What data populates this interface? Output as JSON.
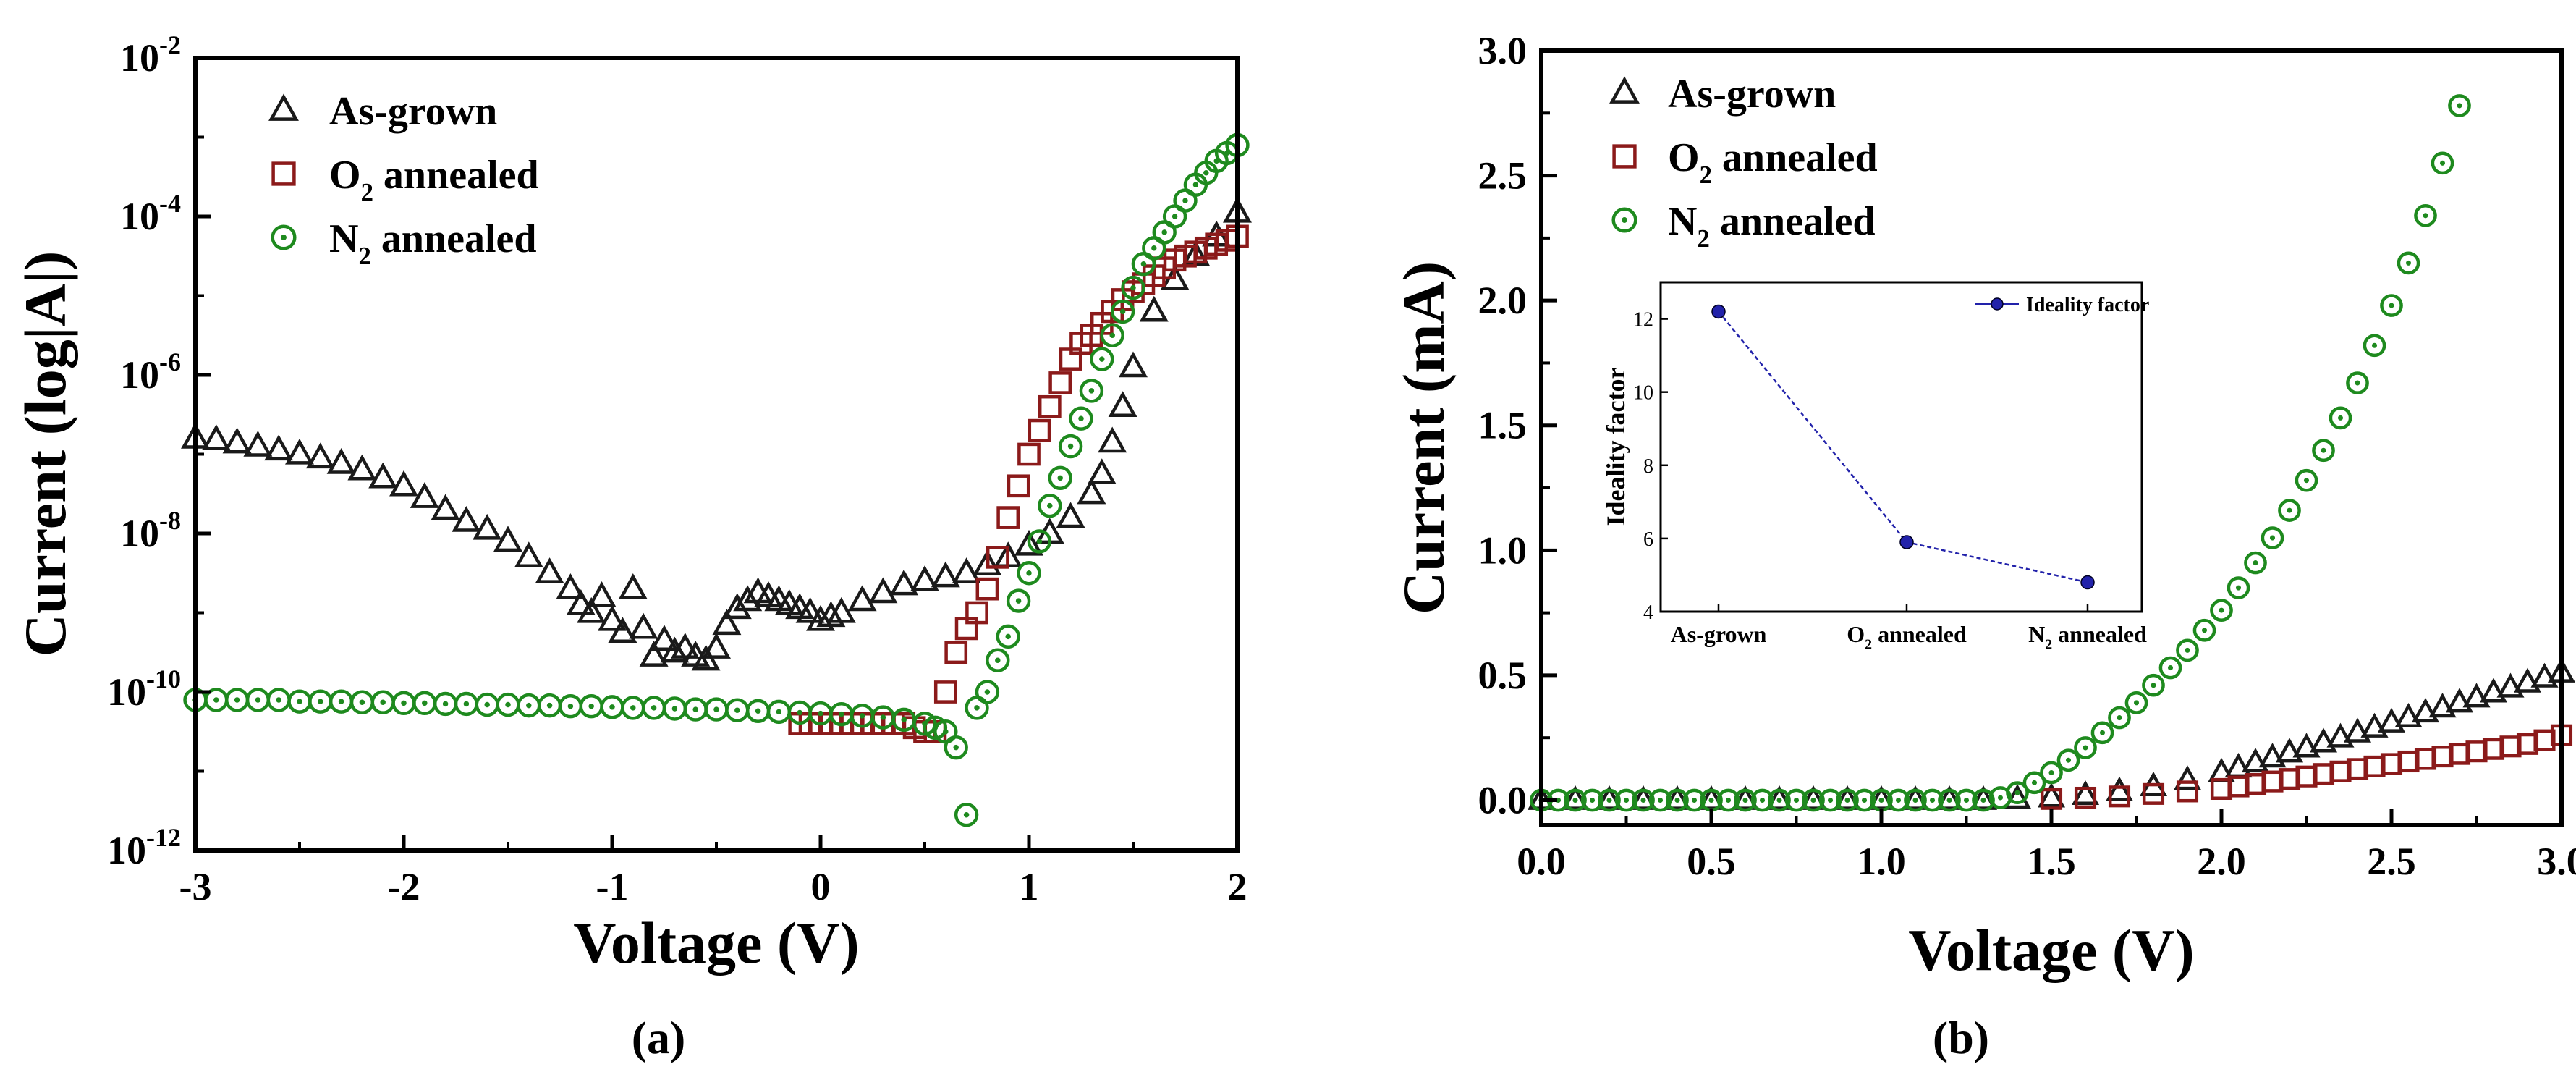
{
  "colors": {
    "as_grown": "#1a1a1a",
    "o2": "#8b1a1a",
    "n2": "#1e8a1e",
    "ideality": "#2222aa"
  },
  "chart_data": [
    {
      "type": "scatter",
      "panel_label": "(a)",
      "xlabel": "Voltage (V)",
      "ylabel": "Current (log|A|)",
      "xlim": [
        -3,
        2
      ],
      "ylim_log10": [
        -12,
        -2
      ],
      "yscale": "log",
      "x_ticks": [
        "-3",
        "-2",
        "-1",
        "0",
        "1",
        "2"
      ],
      "y_tick_exponents": [
        "-12",
        "-10",
        "-8",
        "-6",
        "-4",
        "-2"
      ],
      "legend_position": "top-left",
      "legend": [
        {
          "key": "as_grown",
          "marker": "triangle",
          "text": "As-grown"
        },
        {
          "key": "o2",
          "marker": "square",
          "text": "O",
          "sub": "2",
          "rest": " annealed"
        },
        {
          "key": "n2",
          "marker": "circle",
          "text": "N",
          "sub": "2",
          "rest": " annealed"
        }
      ],
      "series": [
        {
          "key": "as_grown",
          "marker": "triangle",
          "x": [
            -3.0,
            -2.9,
            -2.8,
            -2.7,
            -2.6,
            -2.5,
            -2.4,
            -2.3,
            -2.2,
            -2.1,
            -2.0,
            -1.9,
            -1.8,
            -1.7,
            -1.6,
            -1.5,
            -1.4,
            -1.3,
            -1.2,
            -1.15,
            -1.1,
            -1.05,
            -1.0,
            -0.95,
            -0.9,
            -0.85,
            -0.8,
            -0.75,
            -0.7,
            -0.65,
            -0.6,
            -0.55,
            -0.5,
            -0.45,
            -0.4,
            -0.35,
            -0.3,
            -0.25,
            -0.2,
            -0.15,
            -0.1,
            -0.05,
            0.0,
            0.05,
            0.1,
            0.2,
            0.3,
            0.4,
            0.5,
            0.6,
            0.7,
            0.8,
            0.9,
            1.0,
            1.1,
            1.2,
            1.3,
            1.35,
            1.4,
            1.45,
            1.5,
            1.6,
            1.7,
            1.8,
            1.9,
            2.0
          ],
          "y_log10": [
            -6.8,
            -6.82,
            -6.86,
            -6.9,
            -6.95,
            -7.0,
            -7.05,
            -7.12,
            -7.2,
            -7.3,
            -7.4,
            -7.55,
            -7.7,
            -7.85,
            -7.95,
            -8.1,
            -8.3,
            -8.5,
            -8.7,
            -8.9,
            -9.0,
            -8.8,
            -9.1,
            -9.25,
            -8.7,
            -9.2,
            -9.55,
            -9.35,
            -9.5,
            -9.45,
            -9.55,
            -9.6,
            -9.45,
            -9.15,
            -8.95,
            -8.85,
            -8.75,
            -8.8,
            -8.85,
            -8.9,
            -8.95,
            -9.0,
            -9.1,
            -9.05,
            -9.0,
            -8.85,
            -8.75,
            -8.65,
            -8.6,
            -8.55,
            -8.5,
            -8.4,
            -8.3,
            -8.15,
            -8.0,
            -7.8,
            -7.5,
            -7.25,
            -6.85,
            -6.4,
            -5.9,
            -5.2,
            -4.8,
            -4.5,
            -4.25,
            -3.95
          ]
        },
        {
          "key": "o2",
          "marker": "square",
          "x": [
            -0.1,
            -0.05,
            0.0,
            0.05,
            0.1,
            0.15,
            0.2,
            0.25,
            0.3,
            0.35,
            0.4,
            0.45,
            0.5,
            0.55,
            0.6,
            0.65,
            0.7,
            0.75,
            0.8,
            0.85,
            0.9,
            0.95,
            1.0,
            1.05,
            1.1,
            1.15,
            1.2,
            1.25,
            1.3,
            1.35,
            1.4,
            1.45,
            1.5,
            1.55,
            1.6,
            1.65,
            1.7,
            1.75,
            1.8,
            1.85,
            1.9,
            1.95,
            2.0
          ],
          "y_log10": [
            -10.4,
            -10.4,
            -10.4,
            -10.4,
            -10.4,
            -10.4,
            -10.4,
            -10.4,
            -10.4,
            -10.4,
            -10.4,
            -10.45,
            -10.5,
            -10.5,
            -10.0,
            -9.5,
            -9.2,
            -9.0,
            -8.7,
            -8.3,
            -7.8,
            -7.4,
            -7.0,
            -6.7,
            -6.4,
            -6.1,
            -5.8,
            -5.6,
            -5.5,
            -5.35,
            -5.2,
            -5.05,
            -4.95,
            -4.85,
            -4.75,
            -4.65,
            -4.55,
            -4.5,
            -4.45,
            -4.4,
            -4.35,
            -4.3,
            -4.25
          ]
        },
        {
          "key": "n2",
          "marker": "circle",
          "x": [
            -3.0,
            -2.9,
            -2.8,
            -2.7,
            -2.6,
            -2.5,
            -2.4,
            -2.3,
            -2.2,
            -2.1,
            -2.0,
            -1.9,
            -1.8,
            -1.7,
            -1.6,
            -1.5,
            -1.4,
            -1.3,
            -1.2,
            -1.1,
            -1.0,
            -0.9,
            -0.8,
            -0.7,
            -0.6,
            -0.5,
            -0.4,
            -0.3,
            -0.2,
            -0.1,
            0.0,
            0.1,
            0.2,
            0.3,
            0.4,
            0.5,
            0.55,
            0.6,
            0.65,
            0.7,
            0.75,
            0.8,
            0.85,
            0.9,
            0.95,
            1.0,
            1.05,
            1.1,
            1.15,
            1.2,
            1.25,
            1.3,
            1.35,
            1.4,
            1.45,
            1.5,
            1.55,
            1.6,
            1.65,
            1.7,
            1.75,
            1.8,
            1.85,
            1.9,
            1.95,
            2.0
          ],
          "y_log10": [
            -10.1,
            -10.1,
            -10.1,
            -10.1,
            -10.1,
            -10.12,
            -10.12,
            -10.12,
            -10.13,
            -10.13,
            -10.14,
            -10.14,
            -10.15,
            -10.15,
            -10.16,
            -10.16,
            -10.17,
            -10.17,
            -10.18,
            -10.18,
            -10.19,
            -10.2,
            -10.2,
            -10.21,
            -10.22,
            -10.22,
            -10.23,
            -10.24,
            -10.25,
            -10.26,
            -10.27,
            -10.28,
            -10.3,
            -10.32,
            -10.35,
            -10.4,
            -10.45,
            -10.5,
            -10.7,
            -11.55,
            -10.2,
            -10.0,
            -9.6,
            -9.3,
            -8.85,
            -8.5,
            -8.1,
            -7.65,
            -7.3,
            -6.9,
            -6.55,
            -6.2,
            -5.8,
            -5.5,
            -5.2,
            -4.9,
            -4.6,
            -4.4,
            -4.2,
            -4.0,
            -3.8,
            -3.6,
            -3.45,
            -3.3,
            -3.2,
            -3.1
          ]
        }
      ]
    },
    {
      "type": "scatter",
      "panel_label": "(b)",
      "xlabel": "Voltage (V)",
      "ylabel": "Current (mA)",
      "xlim": [
        0,
        3
      ],
      "ylim": [
        -0.1,
        3
      ],
      "x_ticks": [
        "0.0",
        "0.5",
        "1.0",
        "1.5",
        "2.0",
        "2.5",
        "3.0"
      ],
      "y_ticks": [
        "0.0",
        "0.5",
        "1.0",
        "1.5",
        "2.0",
        "2.5",
        "3.0"
      ],
      "legend_position": "top-left",
      "legend": [
        {
          "key": "as_grown",
          "marker": "triangle",
          "text": "As-grown"
        },
        {
          "key": "o2",
          "marker": "square",
          "text": "O",
          "sub": "2",
          "rest": " annealed"
        },
        {
          "key": "n2",
          "marker": "circle",
          "text": "N",
          "sub": "2",
          "rest": " annealed"
        }
      ],
      "series": [
        {
          "key": "as_grown",
          "marker": "triangle",
          "x": [
            0.0,
            0.1,
            0.2,
            0.3,
            0.4,
            0.5,
            0.6,
            0.7,
            0.8,
            0.9,
            1.0,
            1.1,
            1.2,
            1.3,
            1.4,
            1.5,
            1.6,
            1.7,
            1.8,
            1.9,
            2.0,
            2.05,
            2.1,
            2.15,
            2.2,
            2.25,
            2.3,
            2.35,
            2.4,
            2.45,
            2.5,
            2.55,
            2.6,
            2.65,
            2.7,
            2.75,
            2.8,
            2.85,
            2.9,
            2.95,
            3.0
          ],
          "y": [
            0.0,
            0.0,
            0.0,
            0.0,
            0.0,
            0.0,
            0.0,
            0.0,
            0.0,
            0.0,
            0.0,
            0.0,
            0.0,
            0.0,
            0.005,
            0.01,
            0.02,
            0.035,
            0.055,
            0.08,
            0.11,
            0.13,
            0.15,
            0.17,
            0.19,
            0.21,
            0.23,
            0.25,
            0.27,
            0.29,
            0.31,
            0.33,
            0.35,
            0.37,
            0.39,
            0.41,
            0.43,
            0.45,
            0.47,
            0.49,
            0.51
          ]
        },
        {
          "key": "o2",
          "marker": "square",
          "x": [
            1.5,
            1.6,
            1.7,
            1.8,
            1.9,
            2.0,
            2.05,
            2.1,
            2.15,
            2.2,
            2.25,
            2.3,
            2.35,
            2.4,
            2.45,
            2.5,
            2.55,
            2.6,
            2.65,
            2.7,
            2.75,
            2.8,
            2.85,
            2.9,
            2.95,
            3.0
          ],
          "y": [
            0.005,
            0.01,
            0.015,
            0.025,
            0.035,
            0.045,
            0.055,
            0.065,
            0.075,
            0.085,
            0.095,
            0.105,
            0.115,
            0.125,
            0.135,
            0.145,
            0.155,
            0.165,
            0.175,
            0.185,
            0.195,
            0.205,
            0.215,
            0.225,
            0.24,
            0.26
          ]
        },
        {
          "key": "n2",
          "marker": "circle",
          "x": [
            0.0,
            0.05,
            0.1,
            0.15,
            0.2,
            0.25,
            0.3,
            0.35,
            0.4,
            0.45,
            0.5,
            0.55,
            0.6,
            0.65,
            0.7,
            0.75,
            0.8,
            0.85,
            0.9,
            0.95,
            1.0,
            1.05,
            1.1,
            1.15,
            1.2,
            1.25,
            1.3,
            1.35,
            1.4,
            1.45,
            1.5,
            1.55,
            1.6,
            1.65,
            1.7,
            1.75,
            1.8,
            1.85,
            1.9,
            1.95,
            2.0,
            2.05,
            2.1,
            2.15,
            2.2,
            2.25,
            2.3,
            2.35,
            2.4,
            2.45,
            2.5,
            2.55,
            2.6,
            2.65,
            2.7
          ],
          "y": [
            0.0,
            0.0,
            0.0,
            0.0,
            0.0,
            0.0,
            0.0,
            0.0,
            0.0,
            0.0,
            0.0,
            0.0,
            0.0,
            0.0,
            0.0,
            0.0,
            0.0,
            0.0,
            0.0,
            0.0,
            0.0,
            0.0,
            0.0,
            0.0,
            0.0,
            0.0,
            0.0,
            0.01,
            0.03,
            0.07,
            0.11,
            0.16,
            0.21,
            0.27,
            0.33,
            0.39,
            0.46,
            0.53,
            0.6,
            0.68,
            0.76,
            0.85,
            0.95,
            1.05,
            1.16,
            1.28,
            1.4,
            1.53,
            1.67,
            1.82,
            1.98,
            2.15,
            2.34,
            2.55,
            2.78
          ]
        }
      ],
      "inset": {
        "type": "line",
        "ylabel": "Ideality factor",
        "categories": [
          {
            "text": "As-grown"
          },
          {
            "text": "O",
            "sub": "2",
            "rest": " annealed"
          },
          {
            "text": "N",
            "sub": "2",
            "rest": " annealed"
          }
        ],
        "values": [
          12.2,
          5.9,
          4.8
        ],
        "ylim": [
          4,
          13
        ],
        "y_ticks": [
          "4",
          "6",
          "8",
          "10",
          "12"
        ],
        "legend": "Ideality factor"
      }
    }
  ]
}
